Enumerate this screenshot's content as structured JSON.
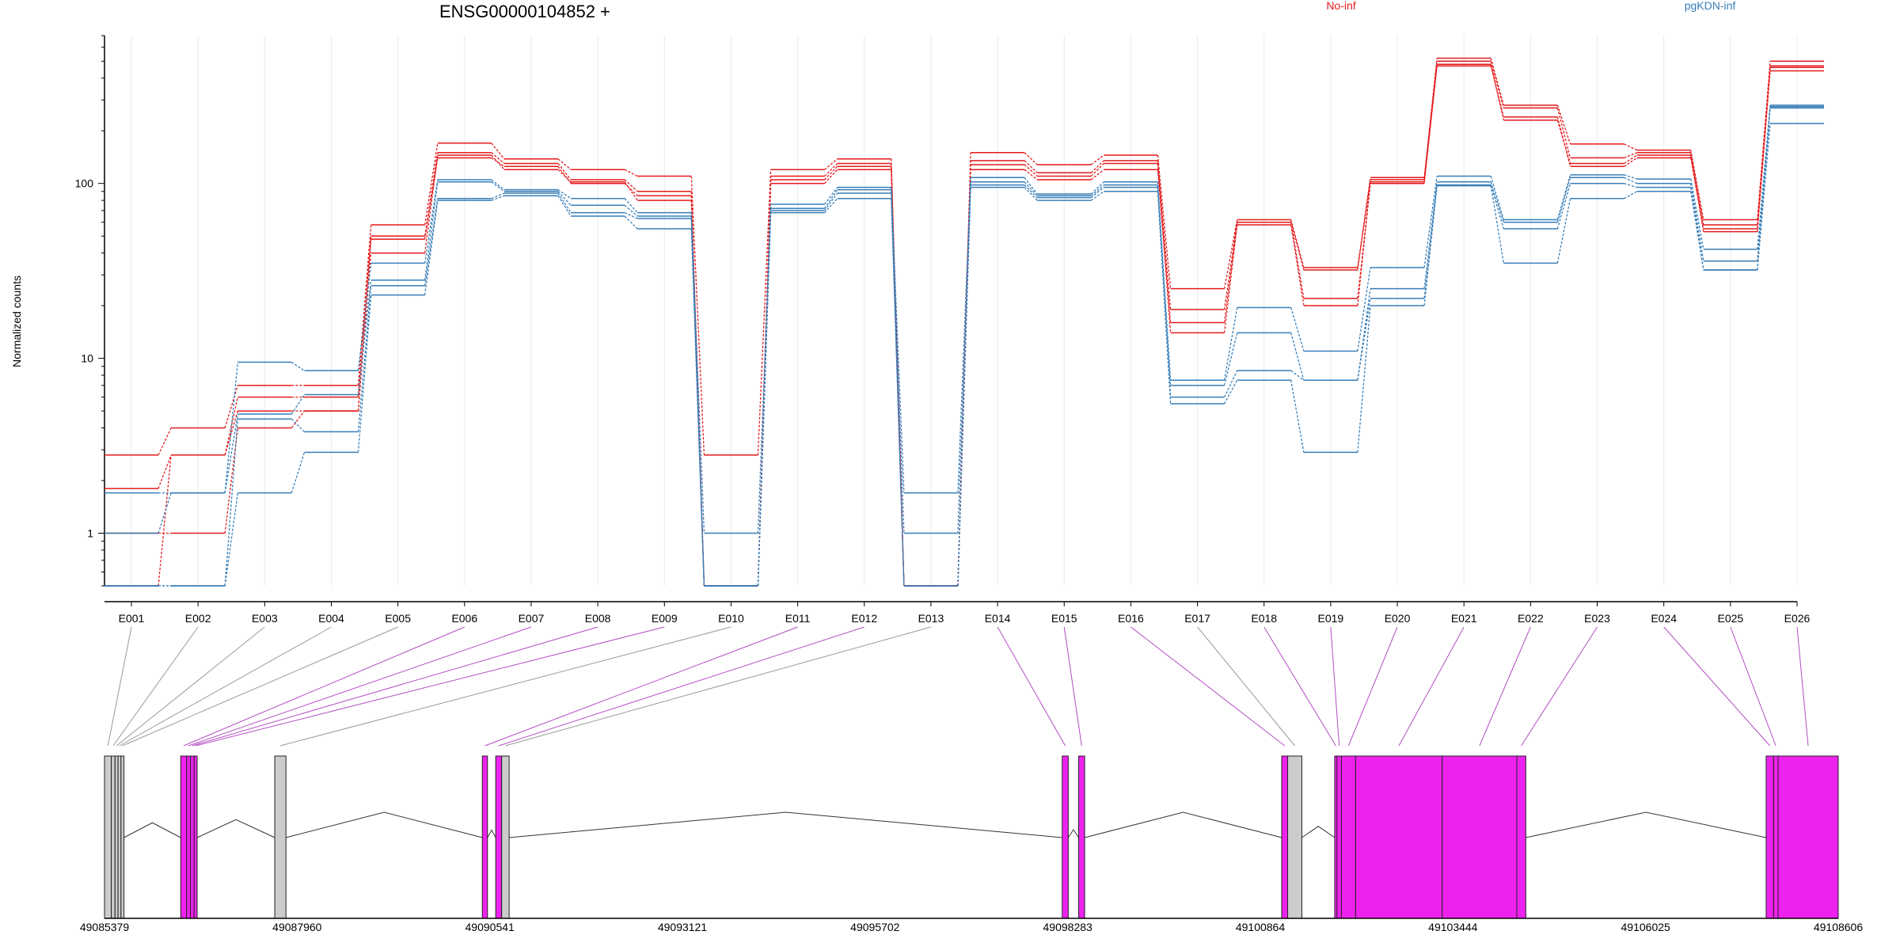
{
  "chart_data": {
    "type": "line",
    "title": "ENSG00000104852 +",
    "ylabel": "Normalized counts",
    "y_scale": "log",
    "ylim": [
      0.5,
      700
    ],
    "y_ticks": [
      1,
      10,
      100
    ],
    "y_tick_labels": [
      "1",
      "10",
      "100"
    ],
    "grid": "vertical",
    "legend_placement": "top",
    "categories": [
      "E001",
      "E002",
      "E003",
      "E004",
      "E005",
      "E006",
      "E007",
      "E008",
      "E009",
      "E010",
      "E011",
      "E012",
      "E013",
      "E014",
      "E015",
      "E016",
      "E017",
      "E018",
      "E019",
      "E020",
      "E021",
      "E022",
      "E023",
      "E024",
      "E025",
      "E026"
    ],
    "series": [
      {
        "name": "No-inf",
        "color": "#e41a1c",
        "values": [
          2.8,
          4,
          7,
          7,
          58,
          170,
          138,
          120,
          110,
          2.8,
          120,
          138,
          0.5,
          150,
          128,
          145,
          25,
          62,
          33,
          108,
          520,
          280,
          168,
          155,
          62,
          500
        ]
      },
      {
        "name": "No-inf",
        "color": "#e41a1c",
        "values": [
          1.8,
          2.8,
          6,
          6,
          50,
          150,
          130,
          105,
          90,
          0.5,
          110,
          130,
          0.5,
          135,
          115,
          135,
          19,
          60,
          32,
          105,
          500,
          270,
          140,
          150,
          58,
          470
        ]
      },
      {
        "name": "No-inf",
        "color": "#e41a1c",
        "values": [
          1.0,
          1.0,
          4,
          5,
          40,
          145,
          120,
          102,
          80,
          0.5,
          100,
          120,
          0.5,
          120,
          105,
          120,
          16,
          60,
          22,
          100,
          470,
          240,
          125,
          140,
          55,
          440
        ]
      },
      {
        "name": "No-inf",
        "color": "#e41a1c",
        "values": [
          0.5,
          2.8,
          5,
          5,
          48,
          140,
          125,
          100,
          85,
          0.5,
          105,
          125,
          0.5,
          128,
          110,
          130,
          14,
          58,
          20,
          102,
          480,
          230,
          130,
          145,
          53,
          460
        ]
      },
      {
        "name": "pgKDN-inf",
        "color": "#377eb8",
        "values": [
          1.7,
          1.7,
          9.5,
          8.5,
          35,
          105,
          92,
          82,
          68,
          1.0,
          76,
          95,
          1.7,
          108,
          87,
          102,
          7.5,
          19.5,
          11,
          33,
          110,
          62,
          112,
          106,
          42,
          280
        ]
      },
      {
        "name": "pgKDN-inf",
        "color": "#377eb8",
        "values": [
          1.0,
          1.7,
          4.8,
          6.2,
          28,
          102,
          90,
          75,
          65,
          0.5,
          72,
          92,
          1.0,
          102,
          85,
          98,
          7,
          14,
          7.5,
          25,
          102,
          60,
          108,
          100,
          36,
          275
        ]
      },
      {
        "name": "pgKDN-inf",
        "color": "#377eb8",
        "values": [
          0.5,
          0.5,
          4.5,
          3.8,
          26,
          82,
          88,
          68,
          63,
          0.5,
          70,
          88,
          0.5,
          98,
          83,
          95,
          6,
          8.5,
          7.5,
          22,
          98,
          55,
          100,
          95,
          32,
          270
        ]
      },
      {
        "name": "pgKDN-inf",
        "color": "#377eb8",
        "values": [
          0.5,
          0.5,
          1.7,
          2.9,
          23,
          80,
          85,
          65,
          55,
          0.5,
          68,
          82,
          0.5,
          95,
          80,
          90,
          5.5,
          7.5,
          2.9,
          20,
          97,
          35,
          82,
          90,
          32,
          220
        ]
      }
    ],
    "legend": [
      {
        "label": "No-inf",
        "color": "#e41a1c"
      },
      {
        "label": "pgKDN-inf",
        "color": "#377eb8"
      }
    ],
    "gene_model": {
      "genomic_range": [
        49085379,
        49108606
      ],
      "axis_ticks": [
        "49085379",
        "49087960",
        "49090541",
        "49093121",
        "49095702",
        "49098283",
        "49100864",
        "49103444",
        "49106025",
        "49108606"
      ],
      "highlight_color": "#ee22ee",
      "normal_color": "#cccccc",
      "exons": [
        {
          "id": "E001",
          "start": 49085379,
          "end": 49085470,
          "highlight": false
        },
        {
          "id": "E002",
          "start": 49085470,
          "end": 49085520,
          "highlight": false
        },
        {
          "id": "E003",
          "start": 49085520,
          "end": 49085560,
          "highlight": false
        },
        {
          "id": "E004",
          "start": 49085560,
          "end": 49085600,
          "highlight": false
        },
        {
          "id": "E005",
          "start": 49085600,
          "end": 49085640,
          "highlight": false
        },
        {
          "id": "E006",
          "start": 49086400,
          "end": 49086480,
          "highlight": true
        },
        {
          "id": "E007",
          "start": 49086480,
          "end": 49086530,
          "highlight": true
        },
        {
          "id": "E008",
          "start": 49086530,
          "end": 49086580,
          "highlight": true
        },
        {
          "id": "E009",
          "start": 49086580,
          "end": 49086620,
          "highlight": true
        },
        {
          "id": "E010",
          "start": 49087660,
          "end": 49087810,
          "highlight": false
        },
        {
          "id": "E011",
          "start": 49090441,
          "end": 49090510,
          "highlight": true
        },
        {
          "id": "E012",
          "start": 49090620,
          "end": 49090700,
          "highlight": true
        },
        {
          "id": "E013",
          "start": 49090700,
          "end": 49090800,
          "highlight": false
        },
        {
          "id": "E014",
          "start": 49098210,
          "end": 49098290,
          "highlight": true
        },
        {
          "id": "E015",
          "start": 49098430,
          "end": 49098510,
          "highlight": true
        },
        {
          "id": "E016",
          "start": 49101150,
          "end": 49101230,
          "highlight": true
        },
        {
          "id": "E017",
          "start": 49101230,
          "end": 49101420,
          "highlight": false
        },
        {
          "id": "E018",
          "start": 49101860,
          "end": 49101890,
          "highlight": true
        },
        {
          "id": "E019",
          "start": 49101890,
          "end": 49101950,
          "highlight": true
        },
        {
          "id": "E020",
          "start": 49101950,
          "end": 49102140,
          "highlight": true
        },
        {
          "id": "E021",
          "start": 49102140,
          "end": 49103300,
          "highlight": true
        },
        {
          "id": "E022",
          "start": 49103300,
          "end": 49104300,
          "highlight": true
        },
        {
          "id": "E023",
          "start": 49104300,
          "end": 49104420,
          "highlight": true
        },
        {
          "id": "E024",
          "start": 49107640,
          "end": 49107740,
          "highlight": true
        },
        {
          "id": "E025",
          "start": 49107740,
          "end": 49107800,
          "highlight": true
        },
        {
          "id": "E026",
          "start": 49107800,
          "end": 49108606,
          "highlight": true
        }
      ]
    }
  }
}
